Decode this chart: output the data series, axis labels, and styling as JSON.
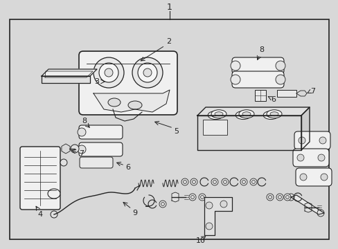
{
  "bg_color": "#d8d8d8",
  "line_color": "#222222",
  "fig_width": 4.89,
  "fig_height": 3.6,
  "dpi": 100
}
